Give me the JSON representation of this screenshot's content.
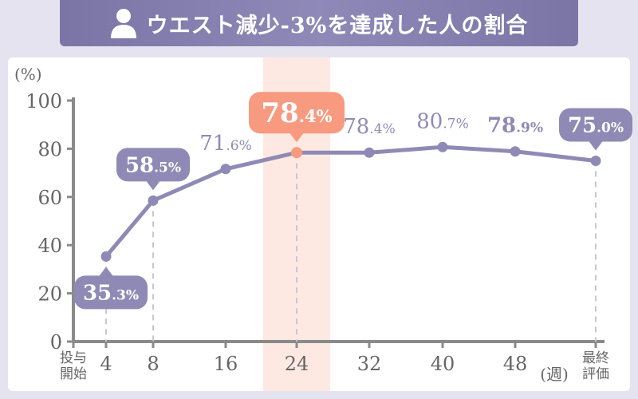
{
  "title": "ウエスト減少-3%を達成した人の割合",
  "icons": {
    "title": "person-icon"
  },
  "colors": {
    "title_bg": "#8682b0",
    "line": "#8f8ab5",
    "highlight": "#f79a80",
    "highlight_band": "#fde9e2",
    "axis": "#8a8a8a",
    "tick_text": "#666666"
  },
  "chart_data": {
    "type": "line",
    "title": "ウエスト減少-3%を達成した人の割合",
    "ylabel": "(%)",
    "xlabel": "(週)",
    "ylim": [
      0,
      100
    ],
    "yticks": [
      0,
      20,
      40,
      60,
      80,
      100
    ],
    "categories": [
      "投与開始",
      "4",
      "8",
      "16",
      "24",
      "32",
      "40",
      "48",
      "最終評価"
    ],
    "x": [
      "4",
      "8",
      "16",
      "24",
      "32",
      "40",
      "48",
      "最終評価"
    ],
    "values": [
      35.3,
      58.5,
      71.6,
      78.4,
      78.4,
      80.7,
      78.9,
      75.0
    ],
    "labels": [
      {
        "int": "35",
        "dec": ".3%",
        "style": "callout-below"
      },
      {
        "int": "58",
        "dec": ".5%",
        "style": "callout"
      },
      {
        "int": "71",
        "dec": ".6%",
        "style": "plain"
      },
      {
        "int": "78",
        "dec": ".4%",
        "style": "highlight"
      },
      {
        "int": "78",
        "dec": ".4%",
        "style": "plain"
      },
      {
        "int": "80",
        "dec": ".7%",
        "style": "plain"
      },
      {
        "int": "78",
        "dec": ".9%",
        "style": "plain-bold"
      },
      {
        "int": "75",
        "dec": ".0%",
        "style": "callout"
      }
    ],
    "highlight_category": "24",
    "grid": false,
    "legend": "none"
  }
}
